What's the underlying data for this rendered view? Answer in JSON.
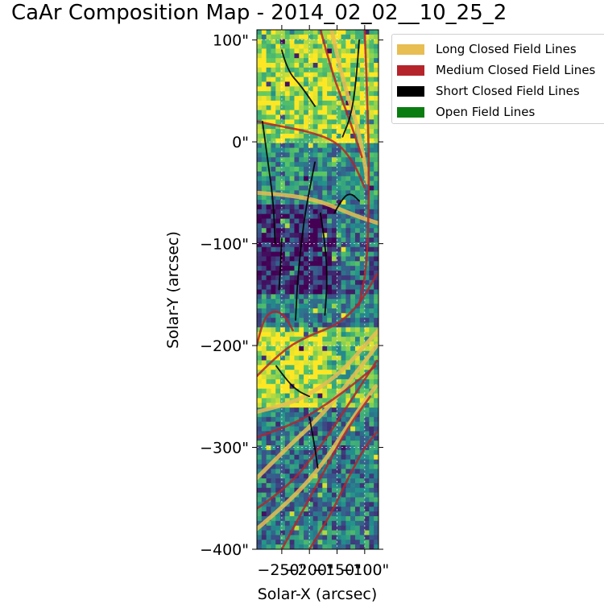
{
  "chart_data": {
    "type": "heatmap",
    "title": "CaAr Composition Map - 2014_02_02__10_25_2",
    "xlabel": "Solar-X (arcsec)",
    "ylabel": "Solar-Y (arcsec)",
    "xlim": [
      -295,
      -75
    ],
    "ylim": [
      -400,
      110
    ],
    "x_ticks": [
      -250,
      -200,
      -150,
      -100
    ],
    "x_tick_labels": [
      "−250\"",
      "−200\"",
      "−150\"",
      "−100\""
    ],
    "y_ticks": [
      100,
      0,
      -100,
      -200,
      -300,
      -400
    ],
    "y_tick_labels": [
      "100\"",
      "0\"",
      "−100\"",
      "−200\"",
      "−300\"",
      "−400\""
    ],
    "colormap": "viridis",
    "grid": true,
    "legend_location": "upper-right outside",
    "legend": [
      {
        "label": "Long Closed Field Lines",
        "color": "#e8bd52"
      },
      {
        "label": "Medium Closed Field Lines",
        "color": "#b5242a"
      },
      {
        "label": "Short Closed Field Lines",
        "color": "#000000"
      },
      {
        "label": "Open Field Lines",
        "color": "#0a7d10"
      }
    ],
    "heatmap_regions": [
      {
        "name": "north-bright",
        "y_range": [
          110,
          0
        ],
        "level": 0.85
      },
      {
        "name": "central-dark",
        "y_range": [
          -60,
          -150
        ],
        "level": 0.1
      },
      {
        "name": "middle-mixed",
        "y_range": [
          -150,
          -180
        ],
        "level": 0.45
      },
      {
        "name": "south-bright",
        "y_range": [
          -180,
          -260
        ],
        "level": 0.9
      },
      {
        "name": "southern-band",
        "y_range": [
          -260,
          -400
        ],
        "level": 0.4
      }
    ],
    "field_lines": [
      {
        "category": "long",
        "points": [
          [
            -295,
            -50
          ],
          [
            -240,
            -52
          ],
          [
            -180,
            -58
          ],
          [
            -120,
            -72
          ],
          [
            -75,
            -80
          ]
        ]
      },
      {
        "category": "long",
        "points": [
          [
            -295,
            -265
          ],
          [
            -240,
            -258
          ],
          [
            -190,
            -245
          ],
          [
            -140,
            -225
          ],
          [
            -100,
            -200
          ],
          [
            -75,
            -185
          ]
        ]
      },
      {
        "category": "long",
        "points": [
          [
            -295,
            -380
          ],
          [
            -240,
            -355
          ],
          [
            -180,
            -320
          ],
          [
            -120,
            -270
          ],
          [
            -80,
            -240
          ]
        ]
      },
      {
        "category": "long",
        "points": [
          [
            -295,
            -330
          ],
          [
            -240,
            -300
          ],
          [
            -180,
            -270
          ],
          [
            -120,
            -230
          ],
          [
            -78,
            -200
          ]
        ]
      },
      {
        "category": "long",
        "points": [
          [
            -160,
            110
          ],
          [
            -140,
            60
          ],
          [
            -115,
            20
          ],
          [
            -100,
            -20
          ],
          [
            -95,
            -40
          ]
        ]
      },
      {
        "category": "medium",
        "points": [
          [
            -295,
            -200
          ],
          [
            -285,
            -175
          ],
          [
            -265,
            -165
          ],
          [
            -245,
            -170
          ],
          [
            -230,
            -185
          ]
        ]
      },
      {
        "category": "medium",
        "points": [
          [
            -295,
            -230
          ],
          [
            -250,
            -205
          ],
          [
            -200,
            -190
          ],
          [
            -150,
            -180
          ],
          [
            -110,
            -160
          ],
          [
            -78,
            -130
          ]
        ]
      },
      {
        "category": "medium",
        "points": [
          [
            -295,
            -290
          ],
          [
            -240,
            -280
          ],
          [
            -180,
            -262
          ],
          [
            -120,
            -238
          ],
          [
            -80,
            -220
          ]
        ]
      },
      {
        "category": "medium",
        "points": [
          [
            -295,
            -360
          ],
          [
            -240,
            -340
          ],
          [
            -180,
            -300
          ],
          [
            -120,
            -250
          ],
          [
            -78,
            -215
          ]
        ]
      },
      {
        "category": "medium",
        "points": [
          [
            -250,
            -400
          ],
          [
            -210,
            -360
          ],
          [
            -170,
            -320
          ],
          [
            -130,
            -280
          ],
          [
            -90,
            -250
          ]
        ]
      },
      {
        "category": "medium",
        "points": [
          [
            -200,
            -400
          ],
          [
            -165,
            -370
          ],
          [
            -130,
            -330
          ],
          [
            -100,
            -300
          ],
          [
            -78,
            -285
          ]
        ]
      },
      {
        "category": "medium",
        "points": [
          [
            -295,
            20
          ],
          [
            -250,
            15
          ],
          [
            -200,
            10
          ],
          [
            -150,
            0
          ],
          [
            -120,
            -20
          ],
          [
            -100,
            -45
          ]
        ]
      },
      {
        "category": "medium",
        "points": [
          [
            -180,
            110
          ],
          [
            -160,
            70
          ],
          [
            -140,
            40
          ],
          [
            -120,
            10
          ],
          [
            -105,
            -15
          ]
        ]
      },
      {
        "category": "medium",
        "points": [
          [
            -100,
            110
          ],
          [
            -95,
            40
          ],
          [
            -92,
            -30
          ],
          [
            -95,
            -120
          ],
          [
            -110,
            -160
          ]
        ]
      },
      {
        "category": "short",
        "points": [
          [
            -285,
            20
          ],
          [
            -275,
            -20
          ],
          [
            -265,
            -60
          ],
          [
            -262,
            -100
          ]
        ]
      },
      {
        "category": "short",
        "points": [
          [
            -250,
            90
          ],
          [
            -240,
            70
          ],
          [
            -215,
            55
          ],
          [
            -190,
            35
          ]
        ]
      },
      {
        "category": "short",
        "points": [
          [
            -190,
            -20
          ],
          [
            -205,
            -60
          ],
          [
            -215,
            -100
          ],
          [
            -222,
            -140
          ],
          [
            -225,
            -175
          ]
        ]
      },
      {
        "category": "short",
        "points": [
          [
            -180,
            -70
          ],
          [
            -170,
            -105
          ],
          [
            -168,
            -140
          ],
          [
            -172,
            -170
          ]
        ]
      },
      {
        "category": "short",
        "points": [
          [
            -250,
            -95
          ],
          [
            -252,
            -120
          ],
          [
            -255,
            -145
          ]
        ]
      },
      {
        "category": "short",
        "points": [
          [
            -260,
            -220
          ],
          [
            -240,
            -235
          ],
          [
            -220,
            -245
          ],
          [
            -200,
            -250
          ]
        ]
      },
      {
        "category": "short",
        "points": [
          [
            -200,
            -270
          ],
          [
            -190,
            -300
          ],
          [
            -185,
            -320
          ]
        ]
      },
      {
        "category": "short",
        "points": [
          [
            -155,
            -70
          ],
          [
            -140,
            -55
          ],
          [
            -125,
            -50
          ],
          [
            -110,
            -58
          ]
        ]
      },
      {
        "category": "short",
        "points": [
          [
            -110,
            100
          ],
          [
            -115,
            60
          ],
          [
            -125,
            25
          ],
          [
            -140,
            5
          ]
        ]
      }
    ]
  }
}
